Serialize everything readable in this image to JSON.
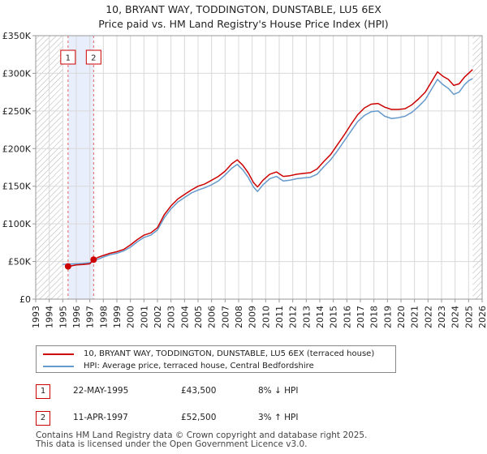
{
  "chart_data": {
    "type": "line",
    "title": "10, BRYANT WAY, TODDINGTON, DUNSTABLE, LU5 6EX",
    "subtitle": "Price paid vs. HM Land Registry's House Price Index (HPI)",
    "xlabel": "",
    "ylabel": "",
    "xlim": [
      1993,
      2026
    ],
    "ylim": [
      0,
      350000
    ],
    "x_ticks": [
      "1993",
      "1994",
      "1995",
      "1996",
      "1997",
      "1998",
      "1999",
      "2000",
      "2001",
      "2002",
      "2003",
      "2004",
      "2005",
      "2006",
      "2007",
      "2008",
      "2009",
      "2010",
      "2011",
      "2012",
      "2013",
      "2014",
      "2015",
      "2016",
      "2017",
      "2018",
      "2019",
      "2020",
      "2021",
      "2022",
      "2023",
      "2024",
      "2025",
      "2026"
    ],
    "y_ticks": [
      {
        "value": 0,
        "label": "£0"
      },
      {
        "value": 50000,
        "label": "£50K"
      },
      {
        "value": 100000,
        "label": "£100K"
      },
      {
        "value": 150000,
        "label": "£150K"
      },
      {
        "value": 200000,
        "label": "£200K"
      },
      {
        "value": 250000,
        "label": "£250K"
      },
      {
        "value": 300000,
        "label": "£300K"
      },
      {
        "value": 350000,
        "label": "£350K"
      }
    ],
    "grid": true,
    "hatched_regions": [
      [
        1993,
        1995.0
      ],
      [
        2025.3,
        2026
      ]
    ],
    "shaded_region": [
      1995.39,
      1997.28
    ],
    "series": [
      {
        "name": "10, BRYANT WAY, TODDINGTON, DUNSTABLE, LU5 6EX (terraced house)",
        "color": "#cc0000",
        "points": [
          [
            1995.39,
            43500
          ],
          [
            1995.7,
            44500
          ],
          [
            1996.0,
            45500
          ],
          [
            1996.5,
            46000
          ],
          [
            1997.0,
            47000
          ],
          [
            1997.28,
            52500
          ],
          [
            1997.6,
            55500
          ],
          [
            1998.0,
            58000
          ],
          [
            1998.5,
            61000
          ],
          [
            1999.0,
            63000
          ],
          [
            1999.5,
            66000
          ],
          [
            2000.0,
            72000
          ],
          [
            2000.5,
            79000
          ],
          [
            2001.0,
            85000
          ],
          [
            2001.5,
            88000
          ],
          [
            2002.0,
            95000
          ],
          [
            2002.5,
            112000
          ],
          [
            2003.0,
            124000
          ],
          [
            2003.5,
            133000
          ],
          [
            2004.0,
            139000
          ],
          [
            2004.5,
            145000
          ],
          [
            2005.0,
            150000
          ],
          [
            2005.5,
            153000
          ],
          [
            2006.0,
            158000
          ],
          [
            2006.5,
            163000
          ],
          [
            2007.0,
            170000
          ],
          [
            2007.5,
            180000
          ],
          [
            2007.9,
            185000
          ],
          [
            2008.3,
            178000
          ],
          [
            2008.7,
            168000
          ],
          [
            2009.1,
            155000
          ],
          [
            2009.4,
            149000
          ],
          [
            2009.8,
            158000
          ],
          [
            2010.3,
            166000
          ],
          [
            2010.8,
            169000
          ],
          [
            2011.3,
            163000
          ],
          [
            2011.8,
            164000
          ],
          [
            2012.3,
            166000
          ],
          [
            2012.8,
            167000
          ],
          [
            2013.3,
            168000
          ],
          [
            2013.8,
            173000
          ],
          [
            2014.3,
            183000
          ],
          [
            2014.8,
            192000
          ],
          [
            2015.3,
            205000
          ],
          [
            2015.8,
            218000
          ],
          [
            2016.3,
            232000
          ],
          [
            2016.8,
            245000
          ],
          [
            2017.3,
            254000
          ],
          [
            2017.8,
            259000
          ],
          [
            2018.3,
            260000
          ],
          [
            2018.8,
            255000
          ],
          [
            2019.3,
            252000
          ],
          [
            2019.8,
            252000
          ],
          [
            2020.3,
            253000
          ],
          [
            2020.8,
            258000
          ],
          [
            2021.3,
            266000
          ],
          [
            2021.8,
            275000
          ],
          [
            2022.3,
            290000
          ],
          [
            2022.7,
            302000
          ],
          [
            2023.1,
            296000
          ],
          [
            2023.5,
            292000
          ],
          [
            2023.9,
            284000
          ],
          [
            2024.3,
            286000
          ],
          [
            2024.7,
            295000
          ],
          [
            2025.0,
            300000
          ],
          [
            2025.3,
            305000
          ]
        ]
      },
      {
        "name": "HPI: Average price, terraced house, Central Bedfordshire",
        "color": "#6699cc",
        "points": [
          [
            1995.0,
            46000
          ],
          [
            1995.5,
            46500
          ],
          [
            1996.0,
            47000
          ],
          [
            1996.5,
            47500
          ],
          [
            1997.0,
            48500
          ],
          [
            1997.28,
            51000
          ],
          [
            1997.6,
            53000
          ],
          [
            1998.0,
            56000
          ],
          [
            1998.5,
            59000
          ],
          [
            1999.0,
            61000
          ],
          [
            1999.5,
            64000
          ],
          [
            2000.0,
            69000
          ],
          [
            2000.5,
            76000
          ],
          [
            2001.0,
            82000
          ],
          [
            2001.5,
            85000
          ],
          [
            2002.0,
            92000
          ],
          [
            2002.5,
            108000
          ],
          [
            2003.0,
            120000
          ],
          [
            2003.5,
            129000
          ],
          [
            2004.0,
            135000
          ],
          [
            2004.5,
            141000
          ],
          [
            2005.0,
            145000
          ],
          [
            2005.5,
            148000
          ],
          [
            2006.0,
            152000
          ],
          [
            2006.5,
            157000
          ],
          [
            2007.0,
            165000
          ],
          [
            2007.5,
            174000
          ],
          [
            2007.9,
            179000
          ],
          [
            2008.3,
            172000
          ],
          [
            2008.7,
            162000
          ],
          [
            2009.1,
            149000
          ],
          [
            2009.4,
            143000
          ],
          [
            2009.8,
            152000
          ],
          [
            2010.3,
            160000
          ],
          [
            2010.8,
            163000
          ],
          [
            2011.3,
            157000
          ],
          [
            2011.8,
            158000
          ],
          [
            2012.3,
            160000
          ],
          [
            2012.8,
            161000
          ],
          [
            2013.3,
            162000
          ],
          [
            2013.8,
            166000
          ],
          [
            2014.3,
            176000
          ],
          [
            2014.8,
            185000
          ],
          [
            2015.3,
            197000
          ],
          [
            2015.8,
            210000
          ],
          [
            2016.3,
            223000
          ],
          [
            2016.8,
            236000
          ],
          [
            2017.3,
            244000
          ],
          [
            2017.8,
            249000
          ],
          [
            2018.3,
            250000
          ],
          [
            2018.8,
            243000
          ],
          [
            2019.3,
            240000
          ],
          [
            2019.8,
            241000
          ],
          [
            2020.3,
            243000
          ],
          [
            2020.8,
            248000
          ],
          [
            2021.3,
            256000
          ],
          [
            2021.8,
            265000
          ],
          [
            2022.3,
            280000
          ],
          [
            2022.7,
            292000
          ],
          [
            2023.1,
            285000
          ],
          [
            2023.5,
            280000
          ],
          [
            2023.9,
            272000
          ],
          [
            2024.3,
            275000
          ],
          [
            2024.7,
            285000
          ],
          [
            2025.0,
            290000
          ],
          [
            2025.3,
            293000
          ]
        ]
      }
    ],
    "sales": [
      {
        "marker": "1",
        "x": 1995.39,
        "y": 43500
      },
      {
        "marker": "2",
        "x": 1997.28,
        "y": 52500
      }
    ],
    "legend_location": "below"
  },
  "legend": {
    "entries": [
      {
        "label": "10, BRYANT WAY, TODDINGTON, DUNSTABLE, LU5 6EX (terraced house)",
        "color": "#cc0000"
      },
      {
        "label": "HPI: Average price, terraced house, Central Bedfordshire",
        "color": "#6699cc"
      }
    ]
  },
  "sales_table": [
    {
      "marker": "1",
      "date": "22-MAY-1995",
      "price": "£43,500",
      "hpi_delta": "8% ↓ HPI"
    },
    {
      "marker": "2",
      "date": "11-APR-1997",
      "price": "£52,500",
      "hpi_delta": "3% ↑ HPI"
    }
  ],
  "footer": {
    "line1": "Contains HM Land Registry data © Crown copyright and database right 2025.",
    "line2": "This data is licensed under the Open Government Licence v3.0."
  }
}
